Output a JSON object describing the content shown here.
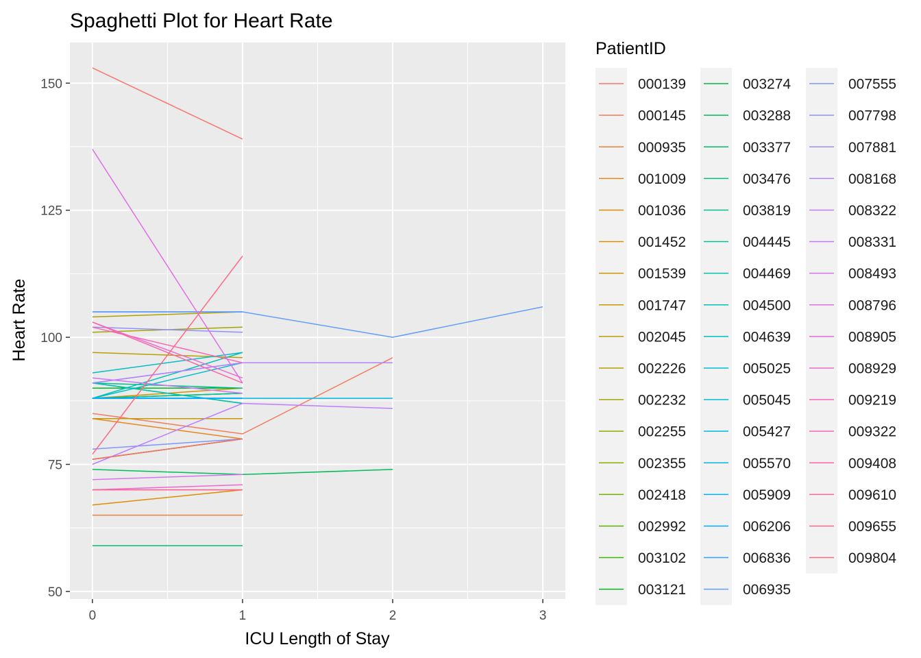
{
  "chart_data": {
    "type": "line",
    "title": "Spaghetti Plot for Heart Rate",
    "xlabel": "ICU Length of Stay",
    "ylabel": "Heart Rate",
    "xlim": [
      -0.15,
      3.15
    ],
    "ylim": [
      48.5,
      158
    ],
    "x_ticks": [
      0,
      1,
      2,
      3
    ],
    "y_ticks": [
      50,
      75,
      100,
      125,
      150
    ],
    "grid": true,
    "legend_title": "PatientID",
    "legend_position": "right",
    "series": [
      {
        "name": "000139",
        "color": "#F8766D",
        "x": [
          0,
          1
        ],
        "y": [
          153,
          139
        ]
      },
      {
        "name": "000145",
        "color": "#F37B59",
        "x": [
          0,
          1,
          2
        ],
        "y": [
          85,
          81,
          96
        ]
      },
      {
        "name": "000935",
        "color": "#ED8141",
        "x": [
          0,
          1
        ],
        "y": [
          65,
          65
        ]
      },
      {
        "name": "001009",
        "color": "#E7861B",
        "x": [
          0,
          1
        ],
        "y": [
          84,
          80
        ]
      },
      {
        "name": "001036",
        "color": "#E08B00",
        "x": [
          0,
          1
        ],
        "y": [
          67,
          70
        ]
      },
      {
        "name": "001452",
        "color": "#D89000",
        "x": [
          0,
          1
        ],
        "y": [
          88,
          89
        ]
      },
      {
        "name": "001539",
        "color": "#CF9400",
        "x": [
          0,
          1
        ],
        "y": [
          88,
          90
        ]
      },
      {
        "name": "001747",
        "color": "#C59900",
        "x": [
          0,
          1
        ],
        "y": [
          84,
          84
        ]
      },
      {
        "name": "002045",
        "color": "#BB9D00",
        "x": [
          0,
          1
        ],
        "y": [
          97,
          96
        ]
      },
      {
        "name": "002226",
        "color": "#AFA100",
        "x": [
          0,
          1
        ],
        "y": [
          104,
          105
        ]
      },
      {
        "name": "002232",
        "color": "#A3A500",
        "x": [
          0,
          1
        ],
        "y": [
          101,
          102
        ]
      },
      {
        "name": "002255",
        "color": "#95A900",
        "x": [
          0,
          1
        ],
        "y": [
          76,
          80
        ]
      },
      {
        "name": "002355",
        "color": "#85AD00",
        "x": [
          0,
          1
        ],
        "y": [
          90,
          90
        ]
      },
      {
        "name": "002418",
        "color": "#72B000",
        "x": [
          0,
          1
        ],
        "y": [
          76,
          80
        ]
      },
      {
        "name": "002992",
        "color": "#5BB300",
        "x": [
          0,
          1
        ],
        "y": [
          76,
          80
        ]
      },
      {
        "name": "003102",
        "color": "#39B600",
        "x": [
          0,
          1
        ],
        "y": [
          90,
          90
        ]
      },
      {
        "name": "003121",
        "color": "#00B81F",
        "x": [
          0,
          1
        ],
        "y": [
          90,
          90
        ]
      },
      {
        "name": "003274",
        "color": "#00BA42",
        "x": [
          0,
          1
        ],
        "y": [
          88,
          89
        ]
      },
      {
        "name": "003288",
        "color": "#00BC59",
        "x": [
          0,
          1,
          2
        ],
        "y": [
          74,
          73,
          74
        ]
      },
      {
        "name": "003377",
        "color": "#00BE6C",
        "x": [
          0,
          1
        ],
        "y": [
          59,
          59
        ]
      },
      {
        "name": "003476",
        "color": "#00BF7D",
        "x": [
          0,
          1
        ],
        "y": [
          91,
          87
        ]
      },
      {
        "name": "003819",
        "color": "#00C08D",
        "x": [
          0,
          1
        ],
        "y": [
          91,
          90
        ]
      },
      {
        "name": "004445",
        "color": "#00C19C",
        "x": [
          0,
          1
        ],
        "y": [
          88,
          89
        ]
      },
      {
        "name": "004469",
        "color": "#00C1AA",
        "x": [
          0,
          1
        ],
        "y": [
          91,
          87
        ]
      },
      {
        "name": "004500",
        "color": "#00C0B8",
        "x": [
          0,
          1
        ],
        "y": [
          88,
          97
        ]
      },
      {
        "name": "004639",
        "color": "#00BFC4",
        "x": [
          0,
          1
        ],
        "y": [
          93,
          97
        ]
      },
      {
        "name": "005025",
        "color": "#00BDD0",
        "x": [
          0,
          1
        ],
        "y": [
          88,
          95
        ]
      },
      {
        "name": "005045",
        "color": "#00BBDB",
        "x": [
          0,
          1
        ],
        "y": [
          88,
          88
        ]
      },
      {
        "name": "005427",
        "color": "#00B8E5",
        "x": [
          0,
          1,
          2
        ],
        "y": [
          88,
          88,
          88
        ]
      },
      {
        "name": "005570",
        "color": "#00B4EF",
        "x": [
          0,
          1
        ],
        "y": [
          88,
          88
        ]
      },
      {
        "name": "005909",
        "color": "#00B0F6",
        "x": [
          0,
          1
        ],
        "y": [
          88,
          88
        ]
      },
      {
        "name": "006206",
        "color": "#00ABFD",
        "x": [
          0,
          1
        ],
        "y": [
          88,
          88
        ]
      },
      {
        "name": "006836",
        "color": "#35A2FF",
        "x": [
          0,
          1
        ],
        "y": [
          105,
          105
        ]
      },
      {
        "name": "006935",
        "color": "#619CFF",
        "x": [
          0,
          1,
          2,
          3
        ],
        "y": [
          105,
          105,
          100,
          106
        ]
      },
      {
        "name": "007555",
        "color": "#7B97FF",
        "x": [
          0,
          1
        ],
        "y": [
          78,
          80
        ]
      },
      {
        "name": "007798",
        "color": "#8F91FF",
        "x": [
          0,
          1
        ],
        "y": [
          102,
          101
        ]
      },
      {
        "name": "007881",
        "color": "#A18AFF",
        "x": [
          0,
          1
        ],
        "y": [
          91,
          95
        ]
      },
      {
        "name": "008168",
        "color": "#B183FF",
        "x": [
          0,
          1,
          2
        ],
        "y": [
          91,
          95,
          95
        ]
      },
      {
        "name": "008322",
        "color": "#BF7CFF",
        "x": [
          0,
          1,
          2
        ],
        "y": [
          75,
          87,
          86
        ]
      },
      {
        "name": "008331",
        "color": "#CC76F9",
        "x": [
          0,
          1
        ],
        "y": [
          92,
          89
        ]
      },
      {
        "name": "008493",
        "color": "#D772EF",
        "x": [
          0,
          1
        ],
        "y": [
          72,
          73
        ]
      },
      {
        "name": "008796",
        "color": "#E16EE4",
        "x": [
          0,
          1
        ],
        "y": [
          137,
          91
        ]
      },
      {
        "name": "008905",
        "color": "#E96AD9",
        "x": [
          0,
          1
        ],
        "y": [
          103,
          92
        ]
      },
      {
        "name": "008929",
        "color": "#F067CC",
        "x": [
          0,
          1
        ],
        "y": [
          70,
          71
        ]
      },
      {
        "name": "009219",
        "color": "#F665BF",
        "x": [
          0,
          1
        ],
        "y": [
          70,
          70
        ]
      },
      {
        "name": "009322",
        "color": "#FA64B2",
        "x": [
          0,
          1
        ],
        "y": [
          102,
          95
        ]
      },
      {
        "name": "009408",
        "color": "#FD64A3",
        "x": [
          0,
          1
        ],
        "y": [
          103,
          91
        ]
      },
      {
        "name": "009610",
        "color": "#FF6593",
        "x": [
          0,
          1
        ],
        "y": [
          70,
          70
        ]
      },
      {
        "name": "009655",
        "color": "#FF6883",
        "x": [
          0,
          1
        ],
        "y": [
          77,
          116
        ]
      },
      {
        "name": "009804",
        "color": "#FB6D73",
        "x": [
          0,
          1
        ],
        "y": [
          76,
          80
        ]
      }
    ]
  }
}
